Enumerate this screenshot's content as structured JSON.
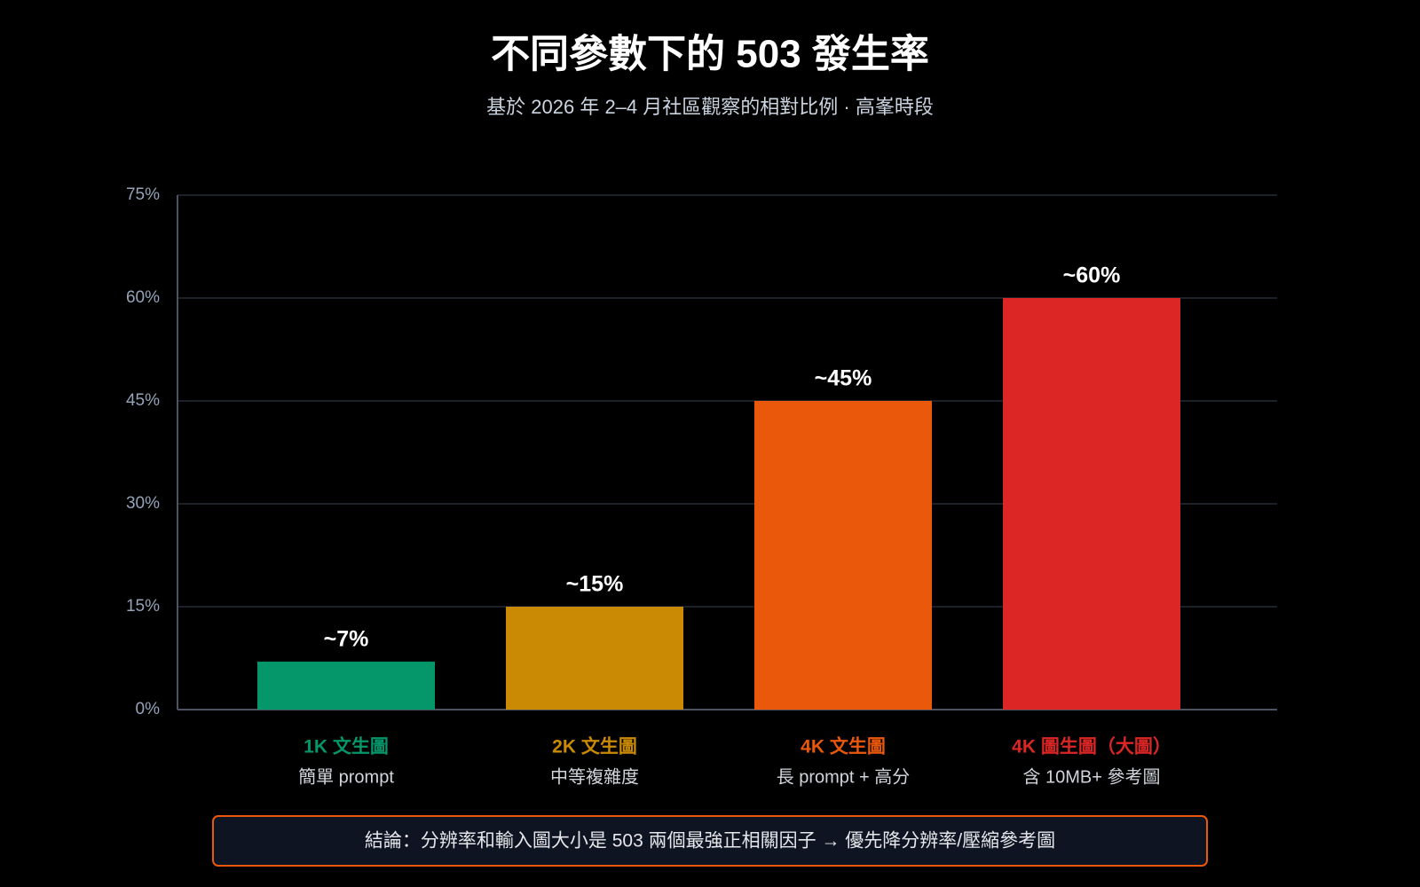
{
  "chart_data": {
    "type": "bar",
    "title": "不同參數下的 503 發生率",
    "subtitle": "基於 2026 年 2–4 月社區觀察的相對比例 · 高峯時段",
    "categories": [
      "1K 文生圖",
      "2K 文生圖",
      "4K 文生圖",
      "4K 圖生圖（大圖）"
    ],
    "subcategories": [
      "簡單 prompt",
      "中等複雜度",
      "長 prompt + 高分",
      "含 10MB+ 參考圖"
    ],
    "values": [
      7,
      15,
      45,
      60
    ],
    "value_labels": [
      "~7%",
      "~15%",
      "~45%",
      "~60%"
    ],
    "colors": [
      "#059669",
      "#ca8a04",
      "#ea580c",
      "#dc2626"
    ],
    "ylim": [
      0,
      75
    ],
    "yticks": [
      {
        "value": 0,
        "label": "0%"
      },
      {
        "value": 15,
        "label": "15%"
      },
      {
        "value": 30,
        "label": "30%"
      },
      {
        "value": 45,
        "label": "45%"
      },
      {
        "value": 60,
        "label": "60%"
      },
      {
        "value": 75,
        "label": "75%"
      }
    ],
    "grid": true,
    "conclusion": "結論：分辨率和輸入圖大小是 503 兩個最強正相關因子 → 優先降分辨率/壓縮參考圖"
  }
}
